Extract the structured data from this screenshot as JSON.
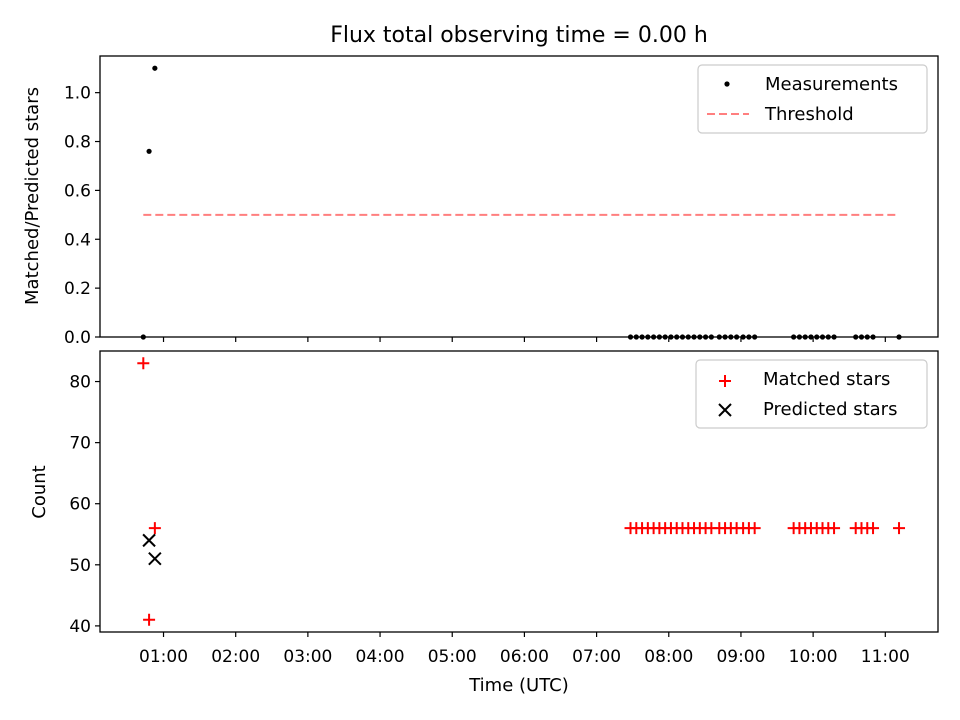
{
  "figure": {
    "title": "Flux total observing time = 0.00 h",
    "xlabel": "Time (UTC)",
    "xticks": [
      {
        "value": 1,
        "label": "01:00"
      },
      {
        "value": 2,
        "label": "02:00"
      },
      {
        "value": 3,
        "label": "03:00"
      },
      {
        "value": 4,
        "label": "04:00"
      },
      {
        "value": 5,
        "label": "05:00"
      },
      {
        "value": 6,
        "label": "06:00"
      },
      {
        "value": 7,
        "label": "07:00"
      },
      {
        "value": 8,
        "label": "08:00"
      },
      {
        "value": 9,
        "label": "09:00"
      },
      {
        "value": 10,
        "label": "10:00"
      },
      {
        "value": 11,
        "label": "11:00"
      }
    ],
    "xlim": [
      0.12,
      11.73
    ],
    "colors": {
      "measurements": "#000000",
      "threshold": "#ff7f7f",
      "matched": "#ff0000",
      "predicted": "#000000"
    }
  },
  "chart_data": [
    {
      "type": "scatter",
      "ylabel": "Matched/Predicted stars",
      "ylim": [
        0,
        1.15
      ],
      "yticks": [
        "0.0",
        "0.2",
        "0.4",
        "0.6",
        "0.8",
        "1.0"
      ],
      "legend_position": "top-right",
      "series": [
        {
          "name": "Measurements",
          "marker": "dot",
          "x": [
            0.72,
            0.8,
            0.88,
            7.47,
            7.55,
            7.63,
            7.71,
            7.79,
            7.87,
            7.95,
            8.03,
            8.11,
            8.19,
            8.27,
            8.35,
            8.43,
            8.51,
            8.59,
            8.7,
            8.78,
            8.86,
            8.94,
            9.03,
            9.11,
            9.19,
            9.73,
            9.81,
            9.89,
            9.97,
            10.05,
            10.13,
            10.21,
            10.29,
            10.59,
            10.67,
            10.75,
            10.83,
            11.19
          ],
          "y": [
            0.0,
            0.76,
            1.1,
            0,
            0,
            0,
            0,
            0,
            0,
            0,
            0,
            0,
            0,
            0,
            0,
            0,
            0,
            0,
            0,
            0,
            0,
            0,
            0,
            0,
            0,
            0,
            0,
            0,
            0,
            0,
            0,
            0,
            0,
            0,
            0,
            0,
            0,
            0
          ]
        },
        {
          "name": "Threshold",
          "marker": "dashed-line",
          "x": [
            0.72,
            11.14
          ],
          "y": [
            0.5,
            0.5
          ]
        }
      ]
    },
    {
      "type": "scatter",
      "ylabel": "Count",
      "ylim": [
        39,
        85
      ],
      "yticks": [
        "40",
        "50",
        "60",
        "70",
        "80"
      ],
      "legend_position": "top-right",
      "series": [
        {
          "name": "Matched stars",
          "marker": "plus",
          "x": [
            0.72,
            0.8,
            0.88,
            7.47,
            7.55,
            7.63,
            7.71,
            7.79,
            7.87,
            7.95,
            8.03,
            8.11,
            8.19,
            8.27,
            8.35,
            8.43,
            8.51,
            8.59,
            8.7,
            8.78,
            8.86,
            8.94,
            9.03,
            9.11,
            9.19,
            9.73,
            9.81,
            9.89,
            9.97,
            10.05,
            10.13,
            10.21,
            10.29,
            10.59,
            10.67,
            10.75,
            10.83,
            11.19
          ],
          "y": [
            83,
            41,
            56,
            56,
            56,
            56,
            56,
            56,
            56,
            56,
            56,
            56,
            56,
            56,
            56,
            56,
            56,
            56,
            56,
            56,
            56,
            56,
            56,
            56,
            56,
            56,
            56,
            56,
            56,
            56,
            56,
            56,
            56,
            56,
            56,
            56,
            56,
            56
          ]
        },
        {
          "name": "Predicted stars",
          "marker": "x",
          "x": [
            0.8,
            0.88
          ],
          "y": [
            54,
            51
          ]
        }
      ]
    }
  ]
}
